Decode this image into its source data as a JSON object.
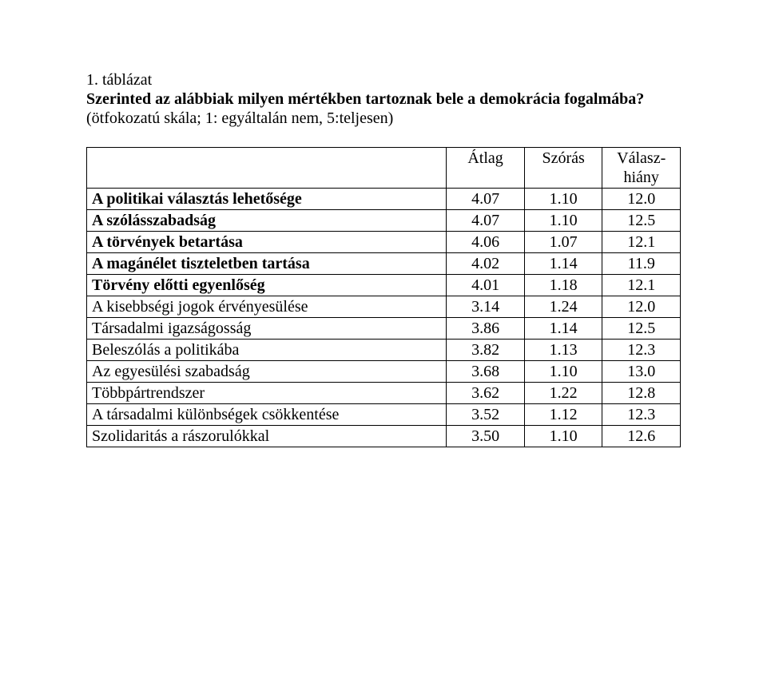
{
  "heading": {
    "line1": "1. táblázat",
    "line2": "Szerinted az alábbiak milyen mértékben tartoznak bele a demokrácia fogalmába?",
    "line3": "(ötfokozatú skála; 1: egyáltalán nem, 5:teljesen)"
  },
  "table": {
    "columns": [
      "",
      "Átlag",
      "Szórás",
      "Válasz-hiány"
    ],
    "header_col3_line1": "Válasz-",
    "header_col3_line2": "hiány",
    "col_widths_pct": [
      60,
      13,
      13,
      14
    ],
    "rows": [
      {
        "bold": true,
        "label": "A politikai választás lehetősége",
        "c1": "4.07",
        "c2": "1.10",
        "c3": "12.0"
      },
      {
        "bold": true,
        "label": "A szólásszabadság",
        "c1": "4.07",
        "c2": "1.10",
        "c3": "12.5"
      },
      {
        "bold": true,
        "label": "A törvények betartása",
        "c1": "4.06",
        "c2": "1.07",
        "c3": "12.1"
      },
      {
        "bold": true,
        "label": "A magánélet tiszteletben tartása",
        "c1": "4.02",
        "c2": "1.14",
        "c3": "11.9"
      },
      {
        "bold": true,
        "label": "Törvény előtti egyenlőség",
        "c1": "4.01",
        "c2": "1.18",
        "c3": "12.1"
      },
      {
        "bold": false,
        "label": "A kisebbségi jogok érvényesülése",
        "c1": "3.14",
        "c2": "1.24",
        "c3": "12.0"
      },
      {
        "bold": false,
        "label": "Társadalmi igazságosság",
        "c1": "3.86",
        "c2": "1.14",
        "c3": "12.5"
      },
      {
        "bold": false,
        "label": "Beleszólás a politikába",
        "c1": "3.82",
        "c2": "1.13",
        "c3": "12.3"
      },
      {
        "bold": false,
        "label": "Az egyesülési szabadság",
        "c1": "3.68",
        "c2": "1.10",
        "c3": "13.0"
      },
      {
        "bold": false,
        "label": "Többpártrendszer",
        "c1": "3.62",
        "c2": "1.22",
        "c3": "12.8"
      },
      {
        "bold": false,
        "label": "A társadalmi különbségek csökkentése",
        "c1": "3.52",
        "c2": "1.12",
        "c3": "12.3"
      },
      {
        "bold": false,
        "label": "Szolidaritás a rászorulókkal",
        "c1": "3.50",
        "c2": "1.10",
        "c3": "12.6"
      }
    ]
  },
  "styling": {
    "background_color": "#ffffff",
    "text_color": "#000000",
    "border_color": "#000000",
    "font_family": "Times New Roman",
    "body_fontsize_pt": 15,
    "heading_bold_fontsize_pt": 15,
    "table_fontsize_pt": 15
  }
}
